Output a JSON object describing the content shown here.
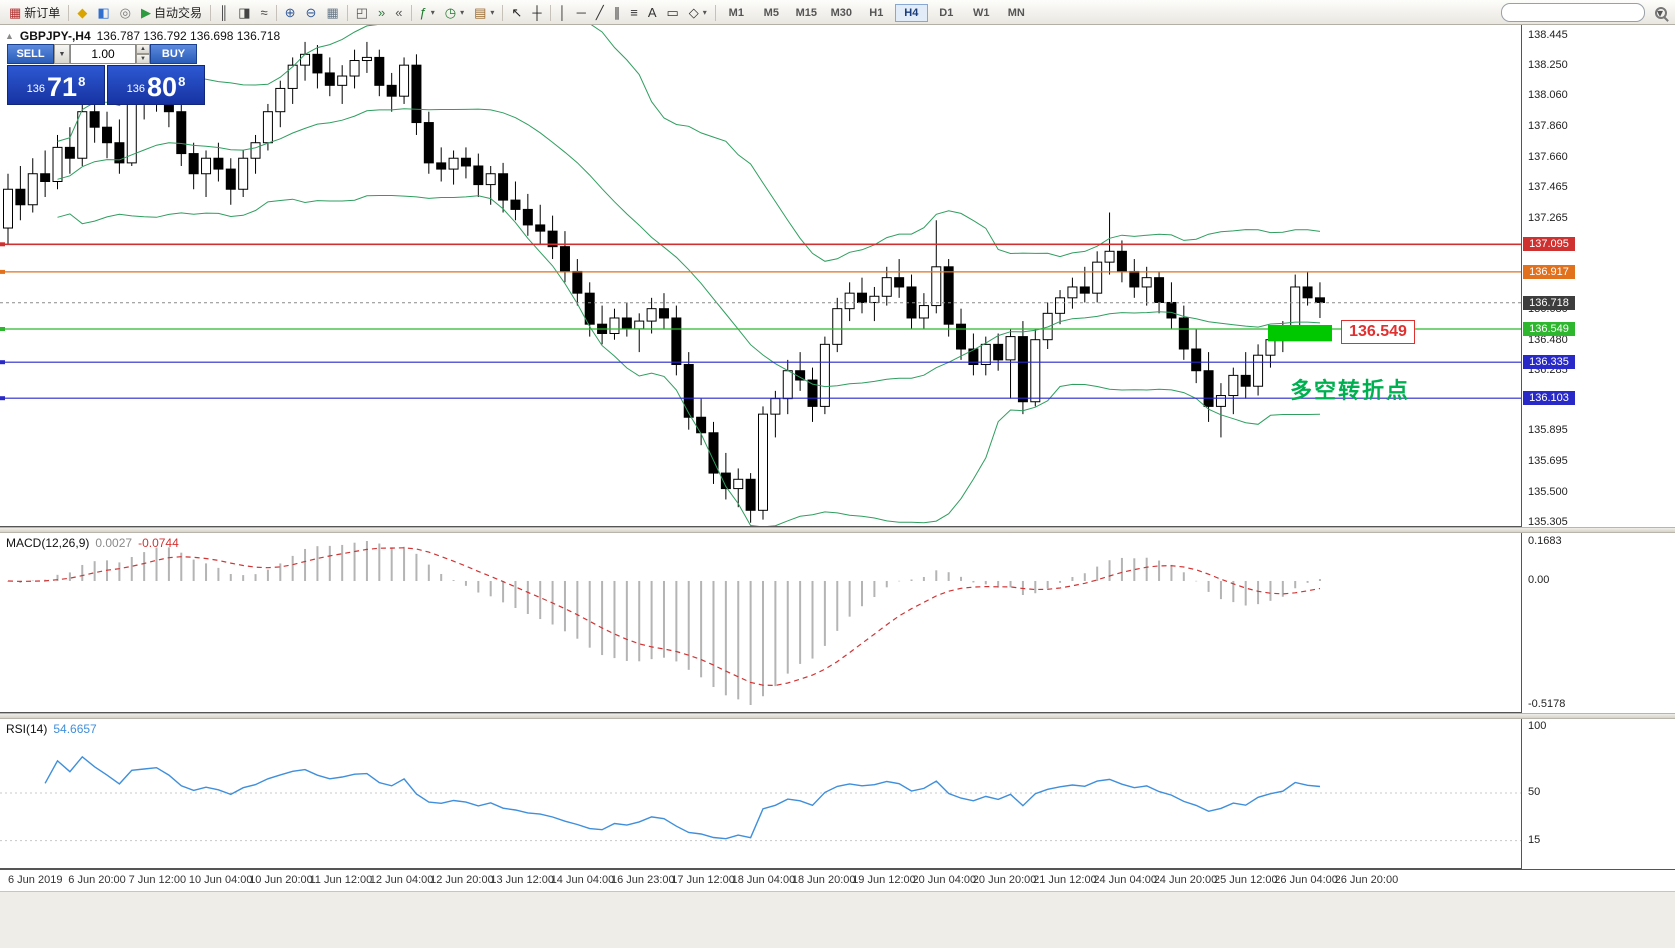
{
  "toolbar": {
    "groups": [
      {
        "items": [
          {
            "name": "new-order",
            "glyph": "▦",
            "glyph_color": "#b03030",
            "label": "新订单"
          }
        ]
      },
      {
        "items": [
          {
            "name": "chart-wizard",
            "glyph": "◆",
            "glyph_color": "#d9a400"
          },
          {
            "name": "market-watch",
            "glyph": "◧",
            "glyph_color": "#2f6fd0"
          },
          {
            "name": "navigator",
            "glyph": "◎",
            "glyph_color": "#777777"
          },
          {
            "name": "autotrading",
            "glyph": "▶",
            "glyph_color": "#2c9a3f",
            "label": "自动交易"
          }
        ]
      },
      {
        "items": [
          {
            "name": "bar-chart",
            "glyph": "║",
            "glyph_color": "#444444"
          },
          {
            "name": "candlestick-chart",
            "glyph": "◨",
            "glyph_color": "#444444"
          },
          {
            "name": "line-chart",
            "glyph": "≈",
            "glyph_color": "#444444"
          }
        ]
      },
      {
        "items": [
          {
            "name": "zoom-in",
            "glyph": "⊕",
            "glyph_color": "#335a9a"
          },
          {
            "name": "zoom-out",
            "glyph": "⊖",
            "glyph_color": "#335a9a"
          },
          {
            "name": "grid",
            "glyph": "▦",
            "glyph_color": "#667788"
          }
        ]
      },
      {
        "items": [
          {
            "name": "tile-windows",
            "glyph": "◰",
            "glyph_color": "#555555"
          },
          {
            "name": "auto-scroll",
            "glyph": "»",
            "glyph_color": "#2c7a3f"
          },
          {
            "name": "chart-shift",
            "glyph": "«",
            "glyph_color": "#555555"
          }
        ]
      },
      {
        "items": [
          {
            "name": "indicators",
            "glyph": "ƒ",
            "glyph_color": "#1f7a2f",
            "caret": true
          },
          {
            "name": "periods",
            "glyph": "◷",
            "glyph_color": "#1f7a2f",
            "caret": true
          },
          {
            "name": "templates",
            "glyph": "▤",
            "glyph_color": "#9a6a2f",
            "caret": true
          }
        ]
      },
      {
        "items": [
          {
            "name": "cursor",
            "glyph": "↖",
            "glyph_color": "#222222"
          },
          {
            "name": "crosshair",
            "glyph": "┼",
            "glyph_color": "#222222"
          }
        ]
      },
      {
        "items": [
          {
            "name": "vertical-line",
            "glyph": "│",
            "glyph_color": "#333333"
          },
          {
            "name": "horizontal-line",
            "glyph": "─",
            "glyph_color": "#333333"
          },
          {
            "name": "trendline",
            "glyph": "╱",
            "glyph_color": "#333333"
          },
          {
            "name": "equidistant-channel",
            "glyph": "∥",
            "glyph_color": "#333333"
          },
          {
            "name": "fibonacci",
            "glyph": "≡",
            "glyph_color": "#333333"
          },
          {
            "name": "text",
            "glyph": "A",
            "glyph_color": "#333333"
          },
          {
            "name": "text-label",
            "glyph": "▭",
            "glyph_color": "#333333"
          },
          {
            "name": "arrows",
            "glyph": "◇",
            "glyph_color": "#333333",
            "caret": true
          }
        ]
      }
    ],
    "timeframes": {
      "options": [
        "M1",
        "M5",
        "M15",
        "M30",
        "H1",
        "H4",
        "D1",
        "W1",
        "MN"
      ],
      "active": "H4"
    },
    "search": {
      "placeholder": ""
    }
  },
  "quote_panel": {
    "sell_label": "SELL",
    "buy_label": "BUY",
    "volume": "1.00",
    "sell_price": {
      "base": "136",
      "pips": "71",
      "pt": "8"
    },
    "buy_price": {
      "base": "136",
      "pips": "80",
      "pt": "8"
    }
  },
  "chart": {
    "title": "GBPJPY-,H4",
    "ohlc": "136.787 136.792 136.698 136.718",
    "annotation": {
      "text": "多空转折点",
      "color": "#00b050"
    },
    "level_label": {
      "text": "136.549",
      "color": "#e03131"
    }
  },
  "macd": {
    "name": "MACD(12,26,9)",
    "value": "0.0027",
    "signal_value": "-0.0744",
    "axis_labels": [
      "0.1683",
      "0.00",
      "-0.5178"
    ]
  },
  "rsi": {
    "name": "RSI(14)",
    "value": "54.6657",
    "axis_labels": [
      "100",
      "50",
      "15"
    ]
  },
  "chart_data": {
    "type": "candlestick",
    "symbol": "GBPJPY-",
    "timeframe": "H4",
    "title": "GBPJPY-,H4 136.787 136.792 136.698 136.718",
    "y_axis_labels": [
      "138.445",
      "138.250",
      "138.060",
      "137.860",
      "137.660",
      "137.465",
      "137.265",
      "136.680",
      "136.480",
      "136.285",
      "135.895",
      "135.695",
      "135.500",
      "135.305"
    ],
    "y_range": [
      135.305,
      138.445
    ],
    "x_axis_labels": [
      "6 Jun 2019",
      "6 Jun 20:00",
      "7 Jun 12:00",
      "10 Jun 04:00",
      "10 Jun 20:00",
      "11 Jun 12:00",
      "12 Jun 04:00",
      "12 Jun 20:00",
      "13 Jun 12:00",
      "14 Jun 04:00",
      "16 Jun 23:00",
      "17 Jun 12:00",
      "18 Jun 04:00",
      "18 Jun 20:00",
      "19 Jun 12:00",
      "20 Jun 04:00",
      "20 Jun 20:00",
      "21 Jun 12:00",
      "24 Jun 04:00",
      "24 Jun 20:00",
      "25 Jun 12:00",
      "26 Jun 04:00",
      "26 Jun 20:00"
    ],
    "price_tags": [
      {
        "price": 137.095,
        "label": "137.095",
        "color": "#cf3030",
        "line": true
      },
      {
        "price": 136.917,
        "label": "136.917",
        "color": "#e2711d",
        "line": true
      },
      {
        "price": 136.718,
        "label": "136.718",
        "color": "#3d3d3d",
        "line": true,
        "current": true
      },
      {
        "price": 136.549,
        "label": "136.549",
        "color": "#2eb62e",
        "line": true
      },
      {
        "price": 136.335,
        "label": "136.335",
        "color": "#2929c8",
        "line": true
      },
      {
        "price": 136.103,
        "label": "136.103",
        "color": "#2929c8",
        "line": true
      }
    ],
    "rectangle": {
      "price_top": 136.575,
      "price_bottom": 136.47,
      "x_from": 1268,
      "x_to": 1332,
      "color": "#00c800"
    },
    "bollinger": {
      "period": 20,
      "deviation": 2,
      "color": "#2f9e5f"
    },
    "macd": {
      "fast": 12,
      "slow": 26,
      "signal": 9,
      "value": 0.0027,
      "signal_value": -0.0744,
      "histogram_color": "#b4b4b4",
      "signal_color": "#d23333"
    },
    "rsi": {
      "period": 14,
      "value": 54.6657,
      "color": "#3f8fdc"
    },
    "candles": [
      [
        137.2,
        137.55,
        137.1,
        137.45
      ],
      [
        137.45,
        137.6,
        137.25,
        137.35
      ],
      [
        137.35,
        137.65,
        137.3,
        137.55
      ],
      [
        137.55,
        137.7,
        137.4,
        137.5
      ],
      [
        137.5,
        137.8,
        137.45,
        137.72
      ],
      [
        137.72,
        137.85,
        137.55,
        137.65
      ],
      [
        137.65,
        138.05,
        137.6,
        137.95
      ],
      [
        137.95,
        138.1,
        137.75,
        137.85
      ],
      [
        137.85,
        137.95,
        137.65,
        137.75
      ],
      [
        137.75,
        137.9,
        137.55,
        137.62
      ],
      [
        137.62,
        138.1,
        137.6,
        138.0
      ],
      [
        138.0,
        138.15,
        137.9,
        138.05
      ],
      [
        138.05,
        138.2,
        137.95,
        138.1
      ],
      [
        138.1,
        138.15,
        137.85,
        137.95
      ],
      [
        137.95,
        138.05,
        137.6,
        137.68
      ],
      [
        137.68,
        137.75,
        137.45,
        137.55
      ],
      [
        137.55,
        137.7,
        137.4,
        137.65
      ],
      [
        137.65,
        137.75,
        137.5,
        137.58
      ],
      [
        137.58,
        137.65,
        137.35,
        137.45
      ],
      [
        137.45,
        137.7,
        137.4,
        137.65
      ],
      [
        137.65,
        137.8,
        137.55,
        137.75
      ],
      [
        137.75,
        138.0,
        137.7,
        137.95
      ],
      [
        137.95,
        138.15,
        137.85,
        138.1
      ],
      [
        138.1,
        138.3,
        138.0,
        138.25
      ],
      [
        138.25,
        138.4,
        138.15,
        138.32
      ],
      [
        138.32,
        138.38,
        138.1,
        138.2
      ],
      [
        138.2,
        138.3,
        138.05,
        138.12
      ],
      [
        138.12,
        138.25,
        138.0,
        138.18
      ],
      [
        138.18,
        138.35,
        138.1,
        138.28
      ],
      [
        138.28,
        138.4,
        138.2,
        138.3
      ],
      [
        138.3,
        138.35,
        138.05,
        138.12
      ],
      [
        138.12,
        138.2,
        137.95,
        138.05
      ],
      [
        138.05,
        138.3,
        138.0,
        138.25
      ],
      [
        138.25,
        138.32,
        137.8,
        137.88
      ],
      [
        137.88,
        137.95,
        137.55,
        137.62
      ],
      [
        137.62,
        137.72,
        137.5,
        137.58
      ],
      [
        137.58,
        137.7,
        137.48,
        137.65
      ],
      [
        137.65,
        137.72,
        137.52,
        137.6
      ],
      [
        137.6,
        137.68,
        137.4,
        137.48
      ],
      [
        137.48,
        137.6,
        137.35,
        137.55
      ],
      [
        137.55,
        137.62,
        137.3,
        137.38
      ],
      [
        137.38,
        137.5,
        137.25,
        137.32
      ],
      [
        137.32,
        137.42,
        137.15,
        137.22
      ],
      [
        137.22,
        137.35,
        137.1,
        137.18
      ],
      [
        137.18,
        137.28,
        137.0,
        137.08
      ],
      [
        137.08,
        137.18,
        136.85,
        136.92
      ],
      [
        136.92,
        137.0,
        136.7,
        136.78
      ],
      [
        136.78,
        136.85,
        136.5,
        136.58
      ],
      [
        136.58,
        136.7,
        136.45,
        136.52
      ],
      [
        136.52,
        136.68,
        136.48,
        136.62
      ],
      [
        136.62,
        136.72,
        136.5,
        136.55
      ],
      [
        136.55,
        136.65,
        136.4,
        136.6
      ],
      [
        136.6,
        136.75,
        136.52,
        136.68
      ],
      [
        136.68,
        136.78,
        136.55,
        136.62
      ],
      [
        136.62,
        136.7,
        136.25,
        136.32
      ],
      [
        136.32,
        136.4,
        135.9,
        135.98
      ],
      [
        135.98,
        136.1,
        135.8,
        135.88
      ],
      [
        135.88,
        135.95,
        135.55,
        135.62
      ],
      [
        135.62,
        135.75,
        135.45,
        135.52
      ],
      [
        135.52,
        135.65,
        135.4,
        135.58
      ],
      [
        135.58,
        135.62,
        135.3,
        135.38
      ],
      [
        135.38,
        136.05,
        135.32,
        136.0
      ],
      [
        136.0,
        136.15,
        135.85,
        136.1
      ],
      [
        136.1,
        136.35,
        136.0,
        136.28
      ],
      [
        136.28,
        136.4,
        136.15,
        136.22
      ],
      [
        136.22,
        136.3,
        135.95,
        136.05
      ],
      [
        136.05,
        136.5,
        136.0,
        136.45
      ],
      [
        136.45,
        136.75,
        136.4,
        136.68
      ],
      [
        136.68,
        136.85,
        136.6,
        136.78
      ],
      [
        136.78,
        136.88,
        136.65,
        136.72
      ],
      [
        136.72,
        136.82,
        136.6,
        136.76
      ],
      [
        136.76,
        136.95,
        136.7,
        136.88
      ],
      [
        136.88,
        137.0,
        136.75,
        136.82
      ],
      [
        136.82,
        136.9,
        136.55,
        136.62
      ],
      [
        136.62,
        136.78,
        136.55,
        136.7
      ],
      [
        136.7,
        137.25,
        136.65,
        136.95
      ],
      [
        136.95,
        137.0,
        136.5,
        136.58
      ],
      [
        136.58,
        136.68,
        136.35,
        136.42
      ],
      [
        136.42,
        136.52,
        136.25,
        136.32
      ],
      [
        136.32,
        136.5,
        136.25,
        136.45
      ],
      [
        136.45,
        136.52,
        136.28,
        136.35
      ],
      [
        136.35,
        136.55,
        136.1,
        136.5
      ],
      [
        136.5,
        136.6,
        136.0,
        136.08
      ],
      [
        136.08,
        136.55,
        136.05,
        136.48
      ],
      [
        136.48,
        136.72,
        136.42,
        136.65
      ],
      [
        136.65,
        136.8,
        136.58,
        136.75
      ],
      [
        136.75,
        136.88,
        136.68,
        136.82
      ],
      [
        136.82,
        136.95,
        136.72,
        136.78
      ],
      [
        136.78,
        137.05,
        136.72,
        136.98
      ],
      [
        136.98,
        137.3,
        136.9,
        137.05
      ],
      [
        137.05,
        137.12,
        136.85,
        136.92
      ],
      [
        136.92,
        137.0,
        136.75,
        136.82
      ],
      [
        136.82,
        136.95,
        136.7,
        136.88
      ],
      [
        136.88,
        136.92,
        136.65,
        136.72
      ],
      [
        136.72,
        136.85,
        136.55,
        136.62
      ],
      [
        136.62,
        136.7,
        136.35,
        136.42
      ],
      [
        136.42,
        136.55,
        136.2,
        136.28
      ],
      [
        136.28,
        136.4,
        135.95,
        136.05
      ],
      [
        136.05,
        136.2,
        135.85,
        136.12
      ],
      [
        136.12,
        136.3,
        136.0,
        136.25
      ],
      [
        136.25,
        136.4,
        136.1,
        136.18
      ],
      [
        136.18,
        136.45,
        136.12,
        136.38
      ],
      [
        136.38,
        136.55,
        136.3,
        136.48
      ],
      [
        136.48,
        136.6,
        136.4,
        136.55
      ],
      [
        136.55,
        136.9,
        136.5,
        136.82
      ],
      [
        136.82,
        136.92,
        136.7,
        136.75
      ],
      [
        136.75,
        136.85,
        136.62,
        136.72
      ]
    ]
  }
}
